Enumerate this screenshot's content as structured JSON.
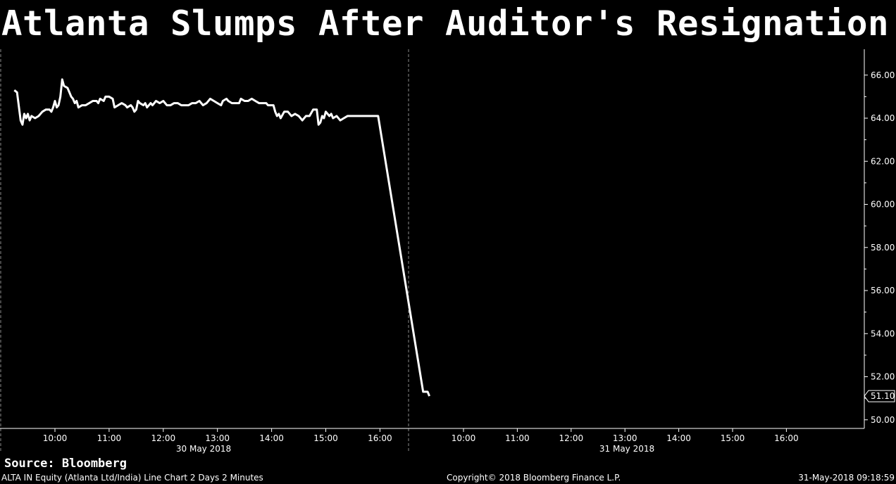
{
  "chart_data": {
    "type": "line",
    "title": "Atlanta Slumps After Auditor's Resignation",
    "y_ticks": [
      "66.00",
      "64.00",
      "62.00",
      "60.00",
      "58.00",
      "56.00",
      "54.00",
      "52.00",
      "50.00"
    ],
    "y_tick_values": [
      66,
      64,
      62,
      60,
      58,
      56,
      54,
      52,
      50
    ],
    "ylim": [
      49.6,
      67.2
    ],
    "x_days": [
      {
        "label": "30 May 2018",
        "ticks": [
          "10:00",
          "11:00",
          "12:00",
          "13:00",
          "14:00",
          "15:00",
          "16:00"
        ]
      },
      {
        "label": "31 May 2018",
        "ticks": [
          "10:00",
          "11:00",
          "12:00",
          "13:00",
          "14:00",
          "15:00",
          "16:00"
        ]
      }
    ],
    "last_value_label": "51.10",
    "last_value": 51.1,
    "line_color": "#ffffff",
    "grid": false,
    "series": [
      {
        "values": [
          {
            "t": "09:15",
            "v": 65.3
          },
          {
            "t": "09:18",
            "v": 65.2
          },
          {
            "t": "09:22",
            "v": 63.9
          },
          {
            "t": "09:24",
            "v": 63.7
          },
          {
            "t": "09:26",
            "v": 64.2
          },
          {
            "t": "09:28",
            "v": 64.0
          },
          {
            "t": "09:30",
            "v": 64.2
          },
          {
            "t": "09:32",
            "v": 63.9
          },
          {
            "t": "09:34",
            "v": 64.1
          },
          {
            "t": "09:38",
            "v": 64.0
          },
          {
            "t": "09:42",
            "v": 64.1
          },
          {
            "t": "09:46",
            "v": 64.3
          },
          {
            "t": "09:50",
            "v": 64.4
          },
          {
            "t": "09:54",
            "v": 64.4
          },
          {
            "t": "09:56",
            "v": 64.3
          },
          {
            "t": "09:58",
            "v": 64.5
          },
          {
            "t": "10:00",
            "v": 64.8
          },
          {
            "t": "10:02",
            "v": 64.5
          },
          {
            "t": "10:04",
            "v": 64.6
          },
          {
            "t": "10:06",
            "v": 65.0
          },
          {
            "t": "10:08",
            "v": 65.8
          },
          {
            "t": "10:10",
            "v": 65.5
          },
          {
            "t": "10:14",
            "v": 65.4
          },
          {
            "t": "10:18",
            "v": 65.0
          },
          {
            "t": "10:20",
            "v": 64.9
          },
          {
            "t": "10:22",
            "v": 64.7
          },
          {
            "t": "10:24",
            "v": 64.8
          },
          {
            "t": "10:26",
            "v": 64.5
          },
          {
            "t": "10:30",
            "v": 64.6
          },
          {
            "t": "10:34",
            "v": 64.6
          },
          {
            "t": "10:38",
            "v": 64.7
          },
          {
            "t": "10:42",
            "v": 64.8
          },
          {
            "t": "10:46",
            "v": 64.8
          },
          {
            "t": "10:48",
            "v": 64.7
          },
          {
            "t": "10:50",
            "v": 64.9
          },
          {
            "t": "10:54",
            "v": 64.8
          },
          {
            "t": "10:56",
            "v": 65.0
          },
          {
            "t": "11:00",
            "v": 65.0
          },
          {
            "t": "11:04",
            "v": 64.9
          },
          {
            "t": "11:06",
            "v": 64.5
          },
          {
            "t": "11:10",
            "v": 64.6
          },
          {
            "t": "11:14",
            "v": 64.7
          },
          {
            "t": "11:18",
            "v": 64.6
          },
          {
            "t": "11:20",
            "v": 64.5
          },
          {
            "t": "11:24",
            "v": 64.6
          },
          {
            "t": "11:26",
            "v": 64.5
          },
          {
            "t": "11:28",
            "v": 64.3
          },
          {
            "t": "11:30",
            "v": 64.4
          },
          {
            "t": "11:32",
            "v": 64.8
          },
          {
            "t": "11:34",
            "v": 64.7
          },
          {
            "t": "11:38",
            "v": 64.6
          },
          {
            "t": "11:40",
            "v": 64.7
          },
          {
            "t": "11:42",
            "v": 64.5
          },
          {
            "t": "11:46",
            "v": 64.7
          },
          {
            "t": "11:48",
            "v": 64.6
          },
          {
            "t": "11:50",
            "v": 64.7
          },
          {
            "t": "11:52",
            "v": 64.8
          },
          {
            "t": "11:56",
            "v": 64.7
          },
          {
            "t": "12:00",
            "v": 64.8
          },
          {
            "t": "12:04",
            "v": 64.6
          },
          {
            "t": "12:08",
            "v": 64.6
          },
          {
            "t": "12:12",
            "v": 64.7
          },
          {
            "t": "12:16",
            "v": 64.7
          },
          {
            "t": "12:20",
            "v": 64.6
          },
          {
            "t": "12:24",
            "v": 64.6
          },
          {
            "t": "12:28",
            "v": 64.6
          },
          {
            "t": "12:32",
            "v": 64.7
          },
          {
            "t": "12:36",
            "v": 64.7
          },
          {
            "t": "12:40",
            "v": 64.8
          },
          {
            "t": "12:44",
            "v": 64.6
          },
          {
            "t": "12:48",
            "v": 64.7
          },
          {
            "t": "12:52",
            "v": 64.9
          },
          {
            "t": "12:56",
            "v": 64.8
          },
          {
            "t": "13:00",
            "v": 64.7
          },
          {
            "t": "13:04",
            "v": 64.6
          },
          {
            "t": "13:06",
            "v": 64.8
          },
          {
            "t": "13:10",
            "v": 64.9
          },
          {
            "t": "13:12",
            "v": 64.8
          },
          {
            "t": "13:16",
            "v": 64.7
          },
          {
            "t": "13:20",
            "v": 64.7
          },
          {
            "t": "13:24",
            "v": 64.7
          },
          {
            "t": "13:26",
            "v": 64.9
          },
          {
            "t": "13:30",
            "v": 64.8
          },
          {
            "t": "13:34",
            "v": 64.8
          },
          {
            "t": "13:38",
            "v": 64.9
          },
          {
            "t": "13:42",
            "v": 64.8
          },
          {
            "t": "13:46",
            "v": 64.7
          },
          {
            "t": "13:50",
            "v": 64.7
          },
          {
            "t": "13:54",
            "v": 64.7
          },
          {
            "t": "13:56",
            "v": 64.6
          },
          {
            "t": "14:02",
            "v": 64.6
          },
          {
            "t": "14:04",
            "v": 64.3
          },
          {
            "t": "14:06",
            "v": 64.1
          },
          {
            "t": "14:08",
            "v": 64.2
          },
          {
            "t": "14:10",
            "v": 64.0
          },
          {
            "t": "14:14",
            "v": 64.3
          },
          {
            "t": "14:18",
            "v": 64.3
          },
          {
            "t": "14:22",
            "v": 64.1
          },
          {
            "t": "14:26",
            "v": 64.2
          },
          {
            "t": "14:30",
            "v": 64.1
          },
          {
            "t": "14:34",
            "v": 63.9
          },
          {
            "t": "14:38",
            "v": 64.1
          },
          {
            "t": "14:42",
            "v": 64.1
          },
          {
            "t": "14:46",
            "v": 64.4
          },
          {
            "t": "14:50",
            "v": 64.4
          },
          {
            "t": "14:52",
            "v": 63.7
          },
          {
            "t": "14:54",
            "v": 63.8
          },
          {
            "t": "14:56",
            "v": 64.1
          },
          {
            "t": "14:58",
            "v": 64.0
          },
          {
            "t": "15:00",
            "v": 64.3
          },
          {
            "t": "15:02",
            "v": 64.2
          },
          {
            "t": "15:04",
            "v": 64.1
          },
          {
            "t": "15:06",
            "v": 64.2
          },
          {
            "t": "15:08",
            "v": 64.0
          },
          {
            "t": "15:12",
            "v": 64.1
          },
          {
            "t": "15:16",
            "v": 63.9
          },
          {
            "t": "15:20",
            "v": 64.0
          },
          {
            "t": "15:24",
            "v": 64.1
          },
          {
            "t": "15:30",
            "v": 64.1
          },
          {
            "t": "15:40",
            "v": 64.1
          },
          {
            "t": "15:50",
            "v": 64.1
          },
          {
            "t": "15:58",
            "v": 64.1
          },
          {
            "day": 1,
            "t": "09:15",
            "v": 51.3
          },
          {
            "day": 1,
            "t": "09:20",
            "v": 51.3
          },
          {
            "day": 1,
            "t": "09:22",
            "v": 51.1
          }
        ]
      }
    ]
  },
  "source": "Source: Bloomberg",
  "footer": {
    "left": "ALTA IN Equity (Atlanta Ltd/India) Line Chart 2 Days 2 Minutes",
    "center": "Copyright© 2018 Bloomberg Finance L.P.",
    "right": "31-May-2018 09:18:59"
  }
}
